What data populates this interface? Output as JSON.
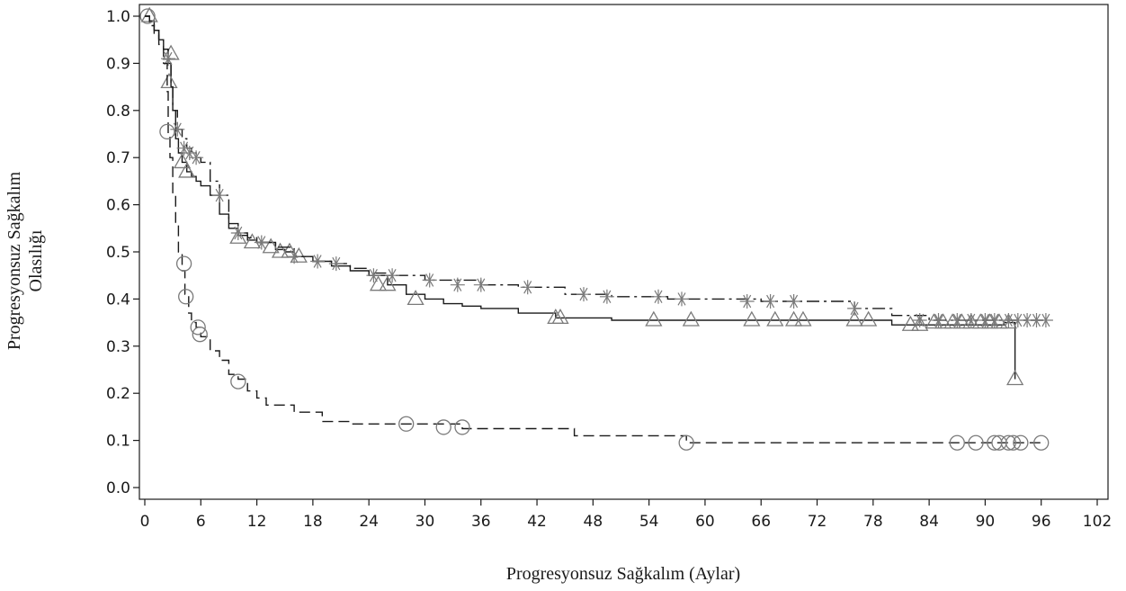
{
  "chart_data": {
    "type": "line",
    "subtype": "kaplan-meier step curves with censoring markers",
    "title": "",
    "xlabel": "Progresyonsuz Sağkalım (Aylar)",
    "ylabel_lines": [
      "Progresyonsuz Sağkalım",
      "Olasılığı"
    ],
    "xlim": [
      0,
      102
    ],
    "ylim": [
      0,
      1.0
    ],
    "xticks": [
      0,
      6,
      12,
      18,
      24,
      30,
      36,
      42,
      48,
      54,
      60,
      66,
      72,
      78,
      84,
      90,
      96,
      102
    ],
    "yticks": [
      "0.0",
      "0.1",
      "0.2",
      "0.3",
      "0.4",
      "0.5",
      "0.6",
      "0.7",
      "0.8",
      "0.9",
      "1.0"
    ],
    "grid": false,
    "legend": "none",
    "series": [
      {
        "key": "solid",
        "line_style": "solid",
        "marker": "triangle",
        "color": "#1a1a1a",
        "steps": [
          [
            0,
            1.0
          ],
          [
            0.5,
            0.99
          ],
          [
            1,
            0.97
          ],
          [
            1.5,
            0.95
          ],
          [
            2,
            0.93
          ],
          [
            2.5,
            0.9
          ],
          [
            2.8,
            0.85
          ],
          [
            3,
            0.8
          ],
          [
            3.3,
            0.74
          ],
          [
            3.6,
            0.71
          ],
          [
            4,
            0.69
          ],
          [
            4.5,
            0.67
          ],
          [
            5,
            0.66
          ],
          [
            5.5,
            0.65
          ],
          [
            6,
            0.64
          ],
          [
            7,
            0.62
          ],
          [
            8,
            0.58
          ],
          [
            9,
            0.55
          ],
          [
            10,
            0.535
          ],
          [
            11,
            0.525
          ],
          [
            12,
            0.52
          ],
          [
            14,
            0.505
          ],
          [
            15,
            0.5
          ],
          [
            16,
            0.49
          ],
          [
            18,
            0.48
          ],
          [
            20,
            0.47
          ],
          [
            22,
            0.46
          ],
          [
            24,
            0.45
          ],
          [
            26,
            0.43
          ],
          [
            28,
            0.41
          ],
          [
            30,
            0.4
          ],
          [
            32,
            0.39
          ],
          [
            34,
            0.385
          ],
          [
            36,
            0.38
          ],
          [
            40,
            0.37
          ],
          [
            44,
            0.36
          ],
          [
            50,
            0.355
          ],
          [
            65,
            0.355
          ],
          [
            80,
            0.345
          ],
          [
            86,
            0.345
          ],
          [
            92,
            0.35
          ],
          [
            93.2,
            0.23
          ]
        ],
        "censored": [
          [
            0.5,
            1.0
          ],
          [
            2.8,
            0.92
          ],
          [
            2.6,
            0.86
          ],
          [
            4,
            0.69
          ],
          [
            4.5,
            0.67
          ],
          [
            10,
            0.53
          ],
          [
            11.5,
            0.52
          ],
          [
            13.5,
            0.51
          ],
          [
            14.5,
            0.5
          ],
          [
            15.5,
            0.5
          ],
          [
            16.5,
            0.49
          ],
          [
            25,
            0.43
          ],
          [
            26,
            0.43
          ],
          [
            29,
            0.4
          ],
          [
            44,
            0.36
          ],
          [
            44.5,
            0.36
          ],
          [
            54.5,
            0.355
          ],
          [
            58.5,
            0.355
          ],
          [
            65,
            0.355
          ],
          [
            67.5,
            0.355
          ],
          [
            69.5,
            0.355
          ],
          [
            70.5,
            0.355
          ],
          [
            76,
            0.355
          ],
          [
            77.5,
            0.355
          ],
          [
            82,
            0.345
          ],
          [
            83,
            0.345
          ],
          [
            84.5,
            0.35
          ],
          [
            85.5,
            0.35
          ],
          [
            86.5,
            0.35
          ],
          [
            87.5,
            0.35
          ],
          [
            88.5,
            0.35
          ],
          [
            89.5,
            0.35
          ],
          [
            90.5,
            0.35
          ],
          [
            91.5,
            0.35
          ],
          [
            92.5,
            0.35
          ],
          [
            93.2,
            0.23
          ]
        ]
      },
      {
        "key": "dashdot",
        "line_style": "dash-dot",
        "marker": "asterisk",
        "color": "#1a1a1a",
        "steps": [
          [
            0,
            1.0
          ],
          [
            0.5,
            0.99
          ],
          [
            1,
            0.97
          ],
          [
            1.5,
            0.95
          ],
          [
            2,
            0.93
          ],
          [
            2.5,
            0.91
          ],
          [
            2.8,
            0.85
          ],
          [
            3,
            0.8
          ],
          [
            3.5,
            0.76
          ],
          [
            4,
            0.74
          ],
          [
            4.5,
            0.72
          ],
          [
            5,
            0.71
          ],
          [
            5.5,
            0.7
          ],
          [
            6,
            0.69
          ],
          [
            7,
            0.65
          ],
          [
            8,
            0.62
          ],
          [
            9,
            0.56
          ],
          [
            10,
            0.54
          ],
          [
            11,
            0.53
          ],
          [
            12,
            0.52
          ],
          [
            14,
            0.51
          ],
          [
            16,
            0.49
          ],
          [
            18,
            0.48
          ],
          [
            20,
            0.475
          ],
          [
            22,
            0.465
          ],
          [
            24,
            0.455
          ],
          [
            26,
            0.45
          ],
          [
            30,
            0.44
          ],
          [
            36,
            0.43
          ],
          [
            40,
            0.425
          ],
          [
            45,
            0.41
          ],
          [
            50,
            0.405
          ],
          [
            56,
            0.4
          ],
          [
            66,
            0.395
          ],
          [
            76,
            0.38
          ],
          [
            80,
            0.365
          ],
          [
            84,
            0.355
          ],
          [
            94,
            0.355
          ],
          [
            96.5,
            0.355
          ]
        ],
        "censored": [
          [
            2.5,
            0.91
          ],
          [
            3.5,
            0.76
          ],
          [
            4.2,
            0.72
          ],
          [
            4.8,
            0.71
          ],
          [
            5.5,
            0.7
          ],
          [
            8,
            0.62
          ],
          [
            10,
            0.54
          ],
          [
            12.5,
            0.52
          ],
          [
            16,
            0.49
          ],
          [
            18.5,
            0.48
          ],
          [
            20.5,
            0.475
          ],
          [
            24.5,
            0.45
          ],
          [
            26.5,
            0.45
          ],
          [
            30.5,
            0.44
          ],
          [
            33.5,
            0.43
          ],
          [
            36,
            0.43
          ],
          [
            41,
            0.425
          ],
          [
            47,
            0.41
          ],
          [
            49.5,
            0.405
          ],
          [
            55,
            0.405
          ],
          [
            57.5,
            0.4
          ],
          [
            64.5,
            0.395
          ],
          [
            67,
            0.395
          ],
          [
            69.5,
            0.395
          ],
          [
            76,
            0.38
          ],
          [
            83,
            0.355
          ],
          [
            85,
            0.355
          ],
          [
            87,
            0.355
          ],
          [
            88.5,
            0.355
          ],
          [
            90,
            0.355
          ],
          [
            91,
            0.355
          ],
          [
            92.5,
            0.355
          ],
          [
            93.5,
            0.355
          ],
          [
            94.5,
            0.355
          ],
          [
            95.5,
            0.355
          ],
          [
            96.5,
            0.355
          ]
        ]
      },
      {
        "key": "dashed",
        "line_style": "dashed",
        "marker": "circle",
        "color": "#1a1a1a",
        "steps": [
          [
            0,
            1.0
          ],
          [
            0.5,
            0.98
          ],
          [
            1,
            0.96
          ],
          [
            1.5,
            0.94
          ],
          [
            2,
            0.9
          ],
          [
            2.4,
            0.84
          ],
          [
            2.5,
            0.75
          ],
          [
            2.7,
            0.7
          ],
          [
            3,
            0.62
          ],
          [
            3.3,
            0.56
          ],
          [
            3.6,
            0.5
          ],
          [
            4,
            0.46
          ],
          [
            4.3,
            0.41
          ],
          [
            4.7,
            0.37
          ],
          [
            5,
            0.35
          ],
          [
            5.5,
            0.34
          ],
          [
            6,
            0.32
          ],
          [
            7,
            0.29
          ],
          [
            8,
            0.27
          ],
          [
            9,
            0.24
          ],
          [
            10,
            0.23
          ],
          [
            11,
            0.205
          ],
          [
            12,
            0.19
          ],
          [
            13,
            0.175
          ],
          [
            16,
            0.16
          ],
          [
            19,
            0.14
          ],
          [
            22,
            0.135
          ],
          [
            28,
            0.135
          ],
          [
            34,
            0.125
          ],
          [
            46,
            0.11
          ],
          [
            58,
            0.095
          ],
          [
            96.5,
            0.095
          ]
        ],
        "censored": [
          [
            0.3,
            1.0
          ],
          [
            2.4,
            0.755
          ],
          [
            4.2,
            0.475
          ],
          [
            4.4,
            0.405
          ],
          [
            5.7,
            0.34
          ],
          [
            5.9,
            0.325
          ],
          [
            10,
            0.225
          ],
          [
            28,
            0.135
          ],
          [
            32,
            0.128
          ],
          [
            34,
            0.128
          ],
          [
            58,
            0.095
          ],
          [
            87,
            0.095
          ],
          [
            89,
            0.095
          ],
          [
            91,
            0.095
          ],
          [
            91.5,
            0.095
          ],
          [
            92.5,
            0.095
          ],
          [
            93,
            0.095
          ],
          [
            93.8,
            0.095
          ],
          [
            96,
            0.095
          ]
        ]
      }
    ]
  }
}
